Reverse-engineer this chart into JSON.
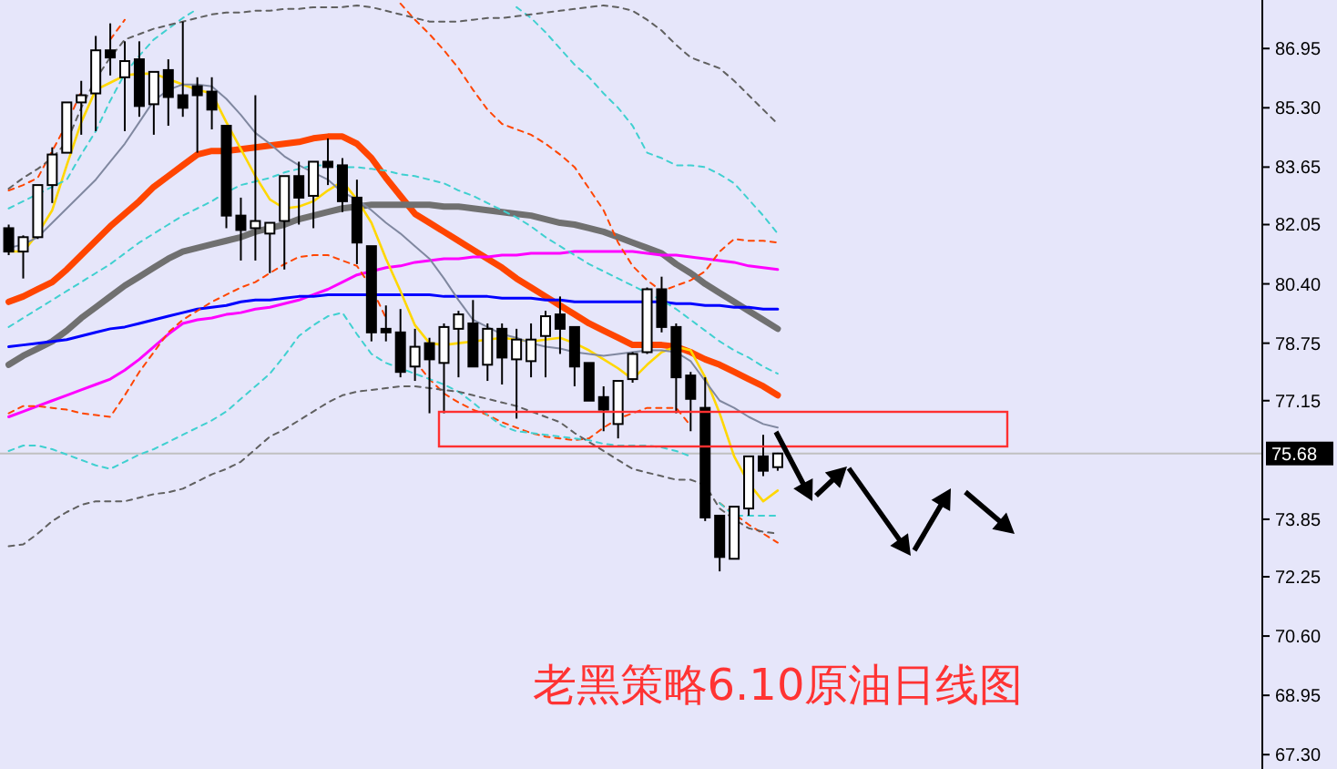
{
  "chart_data": {
    "type": "candlestick",
    "title": "老黑策略6.10原油日线图",
    "categories": [
      null,
      null,
      null,
      null,
      null,
      null,
      null,
      null,
      null,
      null,
      null,
      null,
      null,
      null,
      null,
      null,
      null,
      null,
      null,
      null,
      null,
      null,
      null,
      null,
      null,
      null,
      null,
      null,
      null,
      null,
      null,
      null,
      null,
      null,
      null,
      null,
      null,
      null,
      null,
      null,
      null,
      null,
      null,
      null,
      null,
      null,
      null,
      null,
      null,
      null,
      null,
      null,
      null,
      null
    ],
    "ohlc": [
      [
        81.95,
        82.05,
        81.2,
        81.3
      ],
      [
        81.3,
        81.75,
        80.55,
        81.7
      ],
      [
        81.7,
        83.15,
        81.65,
        83.15
      ],
      [
        83.15,
        84.2,
        82.65,
        84.0
      ],
      [
        84.05,
        85.45,
        84.05,
        85.45
      ],
      [
        85.45,
        86.05,
        84.55,
        85.65
      ],
      [
        85.7,
        87.3,
        84.65,
        86.9
      ],
      [
        86.9,
        87.65,
        86.2,
        86.7
      ],
      [
        86.15,
        87.15,
        84.65,
        86.6
      ],
      [
        86.65,
        87.15,
        85.05,
        85.35
      ],
      [
        85.4,
        86.3,
        84.55,
        86.3
      ],
      [
        86.35,
        86.65,
        84.8,
        85.6
      ],
      [
        85.65,
        87.7,
        85.05,
        85.3
      ],
      [
        85.9,
        86.15,
        84.05,
        85.65
      ],
      [
        85.75,
        86.15,
        84.7,
        85.25
      ],
      [
        84.8,
        84.8,
        81.95,
        82.3
      ],
      [
        82.3,
        82.8,
        81.05,
        81.9
      ],
      [
        81.95,
        85.65,
        81.05,
        82.15
      ],
      [
        81.8,
        82.1,
        80.7,
        82.1
      ],
      [
        82.15,
        83.4,
        80.8,
        83.4
      ],
      [
        83.4,
        83.8,
        82.05,
        82.8
      ],
      [
        82.85,
        83.8,
        81.95,
        83.8
      ],
      [
        83.8,
        84.45,
        83.15,
        83.65
      ],
      [
        83.7,
        83.9,
        82.4,
        82.7
      ],
      [
        82.8,
        83.3,
        80.95,
        81.55
      ],
      [
        81.45,
        81.45,
        78.8,
        79.05
      ],
      [
        79.15,
        79.8,
        78.8,
        79.05
      ],
      [
        79.05,
        79.7,
        77.8,
        77.95
      ],
      [
        78.1,
        79.15,
        77.7,
        78.65
      ],
      [
        78.75,
        78.9,
        76.8,
        78.3
      ],
      [
        78.2,
        79.3,
        76.8,
        79.2
      ],
      [
        79.15,
        79.65,
        77.8,
        79.55
      ],
      [
        79.3,
        79.95,
        78.1,
        78.1
      ],
      [
        78.15,
        79.3,
        77.7,
        79.15
      ],
      [
        79.15,
        79.3,
        77.6,
        78.35
      ],
      [
        78.3,
        79.15,
        76.65,
        78.85
      ],
      [
        78.25,
        79.3,
        77.8,
        78.85
      ],
      [
        78.95,
        79.65,
        77.8,
        79.5
      ],
      [
        79.55,
        80.05,
        78.45,
        79.15
      ],
      [
        79.2,
        79.2,
        77.55,
        78.1
      ],
      [
        78.2,
        78.2,
        77.15,
        77.15
      ],
      [
        77.25,
        77.55,
        76.3,
        76.9
      ],
      [
        76.5,
        77.7,
        76.1,
        77.7
      ],
      [
        77.75,
        78.5,
        77.65,
        78.45
      ],
      [
        78.5,
        80.3,
        78.45,
        80.25
      ],
      [
        80.25,
        80.6,
        79.05,
        79.2
      ],
      [
        79.2,
        79.3,
        76.8,
        77.8
      ],
      [
        77.85,
        77.95,
        76.3,
        77.2
      ],
      [
        76.95,
        77.8,
        73.8,
        73.9
      ],
      [
        73.95,
        73.95,
        72.4,
        72.8
      ],
      [
        72.75,
        74.2,
        72.75,
        74.2
      ],
      [
        74.15,
        75.6,
        73.95,
        75.6
      ],
      [
        75.6,
        76.2,
        75.05,
        75.2
      ],
      [
        75.3,
        75.7,
        75.2,
        75.68
      ]
    ],
    "ylim": [
      66.9,
      88.3
    ],
    "yticks": [
      {
        "value": 86.95,
        "label": "86.95"
      },
      {
        "value": 85.3,
        "label": "85.30"
      },
      {
        "value": 83.65,
        "label": "83.65"
      },
      {
        "value": 82.05,
        "label": "82.05"
      },
      {
        "value": 80.4,
        "label": "80.40"
      },
      {
        "value": 78.75,
        "label": "78.75"
      },
      {
        "value": 77.15,
        "label": "77.15"
      },
      {
        "value": 73.85,
        "label": "73.85"
      },
      {
        "value": 72.25,
        "label": "72.25"
      },
      {
        "value": 70.6,
        "label": "70.60"
      },
      {
        "value": 68.95,
        "label": "68.95"
      },
      {
        "value": 67.3,
        "label": "67.30"
      }
    ],
    "tick_labels": "y",
    "ref_lines": [
      {
        "axis": "y",
        "value": 75.68,
        "label": "75.68",
        "color": "#c0c0c0"
      }
    ],
    "series": [
      {
        "type": "line",
        "color": "#ff4500",
        "values": [
          79.9,
          80.05,
          80.25,
          80.45,
          80.8,
          81.2,
          81.6,
          82.0,
          82.35,
          82.7,
          83.1,
          83.4,
          83.7,
          84.0,
          84.1,
          84.1,
          84.15,
          84.2,
          84.25,
          84.3,
          84.35,
          84.45,
          84.5,
          84.5,
          84.3,
          83.9,
          83.35,
          82.85,
          82.35,
          82.1,
          81.85,
          81.6,
          81.35,
          81.1,
          80.85,
          80.55,
          80.3,
          80.05,
          79.8,
          79.55,
          79.3,
          79.1,
          78.9,
          78.7,
          78.7,
          78.7,
          78.65,
          78.5,
          78.3,
          78.15,
          77.95,
          77.75,
          77.55,
          77.3
        ]
      },
      {
        "type": "line",
        "color": "#707070",
        "values": [
          78.15,
          78.4,
          78.6,
          78.8,
          79.1,
          79.45,
          79.75,
          80.05,
          80.35,
          80.6,
          80.85,
          81.1,
          81.3,
          81.4,
          81.5,
          81.6,
          81.7,
          81.85,
          81.95,
          82.05,
          82.2,
          82.3,
          82.4,
          82.5,
          82.55,
          82.6,
          82.6,
          82.6,
          82.6,
          82.6,
          82.55,
          82.55,
          82.5,
          82.45,
          82.4,
          82.35,
          82.3,
          82.2,
          82.1,
          82.05,
          81.95,
          81.85,
          81.7,
          81.55,
          81.4,
          81.25,
          80.95,
          80.7,
          80.4,
          80.15,
          79.9,
          79.65,
          79.4,
          79.15
        ]
      },
      {
        "type": "line",
        "color": "#ff00ff",
        "values": [
          76.7,
          76.85,
          77.0,
          77.15,
          77.3,
          77.45,
          77.6,
          77.75,
          78.0,
          78.3,
          78.65,
          79.0,
          79.3,
          79.4,
          79.45,
          79.55,
          79.6,
          79.7,
          79.75,
          79.85,
          79.95,
          80.1,
          80.25,
          80.45,
          80.65,
          80.75,
          80.85,
          80.9,
          81.0,
          81.05,
          81.1,
          81.1,
          81.15,
          81.15,
          81.2,
          81.2,
          81.25,
          81.25,
          81.25,
          81.3,
          81.3,
          81.3,
          81.3,
          81.3,
          81.25,
          81.2,
          81.2,
          81.15,
          81.1,
          81.05,
          81.0,
          80.9,
          80.85,
          80.8
        ]
      },
      {
        "type": "line",
        "color": "#0000ff",
        "values": [
          78.65,
          78.7,
          78.75,
          78.8,
          78.85,
          78.95,
          79.05,
          79.15,
          79.2,
          79.3,
          79.4,
          79.5,
          79.6,
          79.7,
          79.75,
          79.8,
          79.9,
          79.95,
          79.95,
          80.0,
          80.05,
          80.05,
          80.1,
          80.1,
          80.1,
          80.1,
          80.1,
          80.1,
          80.1,
          80.1,
          80.05,
          80.05,
          80.05,
          80.05,
          80.0,
          80.0,
          80.0,
          79.95,
          79.95,
          79.9,
          79.9,
          79.9,
          79.9,
          79.9,
          79.9,
          79.9,
          79.85,
          79.85,
          79.8,
          79.8,
          79.75,
          79.75,
          79.7,
          79.7
        ]
      },
      {
        "type": "line",
        "color": "#ffd700",
        "values": [
          81.3,
          81.3,
          81.8,
          82.45,
          83.7,
          84.9,
          85.8,
          86.0,
          86.2,
          86.25,
          86.25,
          86.1,
          85.95,
          85.8,
          85.7,
          84.9,
          84.15,
          83.4,
          82.75,
          82.5,
          82.55,
          82.7,
          83.0,
          83.25,
          82.75,
          82.1,
          81.1,
          80.2,
          79.25,
          78.75,
          78.7,
          78.75,
          78.8,
          78.85,
          78.9,
          78.85,
          78.8,
          78.85,
          78.9,
          78.75,
          78.55,
          78.3,
          78.05,
          77.75,
          78.15,
          78.5,
          78.65,
          78.55,
          77.8,
          76.8,
          75.6,
          74.85,
          74.35,
          74.65
        ]
      },
      {
        "type": "line",
        "color": "#8088a0",
        "values": [
          81.4,
          81.5,
          81.7,
          82.1,
          82.5,
          82.9,
          83.3,
          83.8,
          84.3,
          84.9,
          85.5,
          85.8,
          85.95,
          85.95,
          85.9,
          85.55,
          85.1,
          84.6,
          84.3,
          83.95,
          83.7,
          83.5,
          83.3,
          82.95,
          82.75,
          82.45,
          82.1,
          81.8,
          81.45,
          81.1,
          80.55,
          79.95,
          79.4,
          79.2,
          79.0,
          78.9,
          78.75,
          78.65,
          78.6,
          78.5,
          78.45,
          78.4,
          78.45,
          78.5,
          78.55,
          78.55,
          78.5,
          78.25,
          77.7,
          77.15,
          76.95,
          76.7,
          76.5,
          76.4
        ]
      },
      {
        "type": "line",
        "color": "#ff4500",
        "line_style": "dashed",
        "values": [
          83.0,
          83.15,
          83.35,
          84.1,
          84.85,
          85.75,
          null,
          87.2,
          87.75,
          null,
          null,
          null,
          null,
          null,
          null,
          null,
          null,
          null,
          null,
          null,
          null,
          null,
          null,
          null,
          null,
          null,
          null,
          88.2,
          87.75,
          87.35,
          86.9,
          86.4,
          85.8,
          85.25,
          84.85,
          84.7,
          84.55,
          84.3,
          84.0,
          83.65,
          83.05,
          82.45,
          81.55,
          80.9,
          80.5,
          80.2,
          80.35,
          80.5,
          80.75,
          81.3,
          81.65,
          81.6,
          81.6,
          81.55
        ]
      },
      {
        "type": "line",
        "color": "#ff4500",
        "line_style": "dashed",
        "values": [
          76.8,
          77.0,
          77.0,
          76.95,
          76.9,
          76.8,
          76.75,
          76.7,
          77.3,
          77.95,
          78.5,
          79.05,
          79.4,
          79.65,
          79.9,
          80.1,
          80.3,
          80.45,
          80.7,
          80.95,
          81.15,
          81.2,
          81.2,
          81.05,
          80.9,
          80.3,
          79.45,
          null,
          78.25,
          77.75,
          77.35,
          77.1,
          76.9,
          76.75,
          76.55,
          76.4,
          76.25,
          76.15,
          76.1,
          76.05,
          76.1,
          76.4,
          76.65,
          76.8,
          76.95,
          76.95,
          76.95,
          76.45,
          null,
          74.3,
          74.0,
          73.7,
          73.45,
          73.2
        ]
      },
      {
        "type": "line",
        "color": "#40d0d0",
        "line_style": "dashed",
        "values": [
          82.5,
          82.7,
          82.9,
          83.1,
          83.3,
          84.0,
          84.65,
          85.5,
          86.25,
          86.75,
          87.2,
          87.5,
          87.8,
          88.05,
          null,
          null,
          null,
          null,
          null,
          null,
          null,
          null,
          null,
          null,
          null,
          null,
          null,
          null,
          null,
          null,
          null,
          null,
          null,
          null,
          null,
          88.1,
          87.8,
          87.4,
          86.95,
          86.5,
          86.15,
          85.7,
          85.3,
          84.8,
          84.05,
          83.9,
          83.7,
          83.7,
          83.65,
          83.45,
          83.2,
          82.75,
          82.3,
          81.8
        ]
      },
      {
        "type": "line",
        "color": "#40d0d0",
        "line_style": "dashed",
        "values": [
          79.2,
          79.45,
          79.7,
          79.95,
          80.2,
          80.45,
          80.7,
          80.95,
          81.25,
          81.55,
          81.8,
          82.05,
          82.3,
          82.5,
          82.7,
          82.95,
          83.15,
          83.25,
          83.35,
          83.5,
          83.6,
          83.7,
          83.7,
          83.65,
          83.65,
          83.6,
          83.55,
          83.45,
          83.4,
          83.3,
          83.2,
          83.0,
          82.85,
          82.65,
          82.45,
          82.25,
          82.0,
          81.7,
          81.45,
          81.2,
          80.95,
          80.75,
          80.55,
          80.35,
          80.15,
          79.95,
          79.7,
          79.4,
          79.1,
          78.8,
          78.55,
          78.35,
          78.1,
          77.9
        ]
      },
      {
        "type": "line",
        "color": "#40d0d0",
        "line_style": "dashed",
        "values": [
          75.75,
          75.9,
          75.9,
          75.8,
          75.65,
          75.5,
          75.35,
          75.25,
          75.45,
          75.65,
          75.8,
          76.0,
          76.2,
          76.4,
          76.6,
          76.85,
          77.2,
          77.55,
          77.9,
          78.4,
          78.95,
          79.25,
          79.5,
          79.6,
          79.0,
          78.45,
          78.2,
          78.05,
          77.9,
          77.75,
          77.6,
          77.4,
          77.1,
          76.75,
          76.45,
          76.3,
          76.25,
          76.2,
          76.15,
          76.1,
          76.05,
          75.95,
          75.9,
          75.9,
          75.9,
          75.85,
          75.75,
          75.6,
          null,
          74.3,
          73.95,
          73.95,
          73.95,
          73.95
        ]
      },
      {
        "type": "line",
        "color": "#606060",
        "line_style": "dashed",
        "values": [
          83.05,
          83.35,
          83.6,
          83.9,
          84.35,
          85.3,
          86.1,
          86.7,
          87.2,
          87.35,
          87.5,
          87.6,
          87.7,
          87.8,
          87.9,
          87.95,
          87.95,
          88.0,
          88.0,
          88.05,
          88.05,
          88.1,
          88.1,
          88.1,
          88.15,
          88.1,
          88.0,
          87.9,
          87.8,
          87.7,
          87.7,
          87.7,
          87.75,
          87.8,
          87.8,
          87.85,
          87.9,
          87.95,
          88.0,
          88.05,
          88.1,
          88.15,
          88.1,
          88.0,
          87.75,
          87.45,
          87.05,
          86.7,
          86.55,
          86.4,
          86.05,
          85.65,
          85.25,
          84.85
        ]
      },
      {
        "type": "line",
        "color": "#606060",
        "line_style": "dashed",
        "values": [
          73.1,
          73.15,
          73.45,
          73.8,
          74.05,
          74.25,
          74.35,
          74.35,
          74.35,
          74.45,
          74.55,
          74.6,
          74.7,
          74.9,
          75.1,
          75.25,
          75.45,
          75.8,
          76.15,
          76.35,
          76.6,
          76.85,
          77.1,
          77.3,
          77.4,
          77.45,
          77.5,
          77.55,
          77.55,
          77.5,
          77.45,
          77.4,
          77.3,
          77.2,
          77.1,
          77.0,
          76.85,
          76.7,
          76.55,
          76.25,
          76.0,
          75.75,
          75.5,
          75.25,
          75.15,
          75.05,
          74.95,
          74.95,
          74.8,
          74.15,
          73.85,
          73.6,
          73.5,
          73.45
        ]
      }
    ]
  }
}
